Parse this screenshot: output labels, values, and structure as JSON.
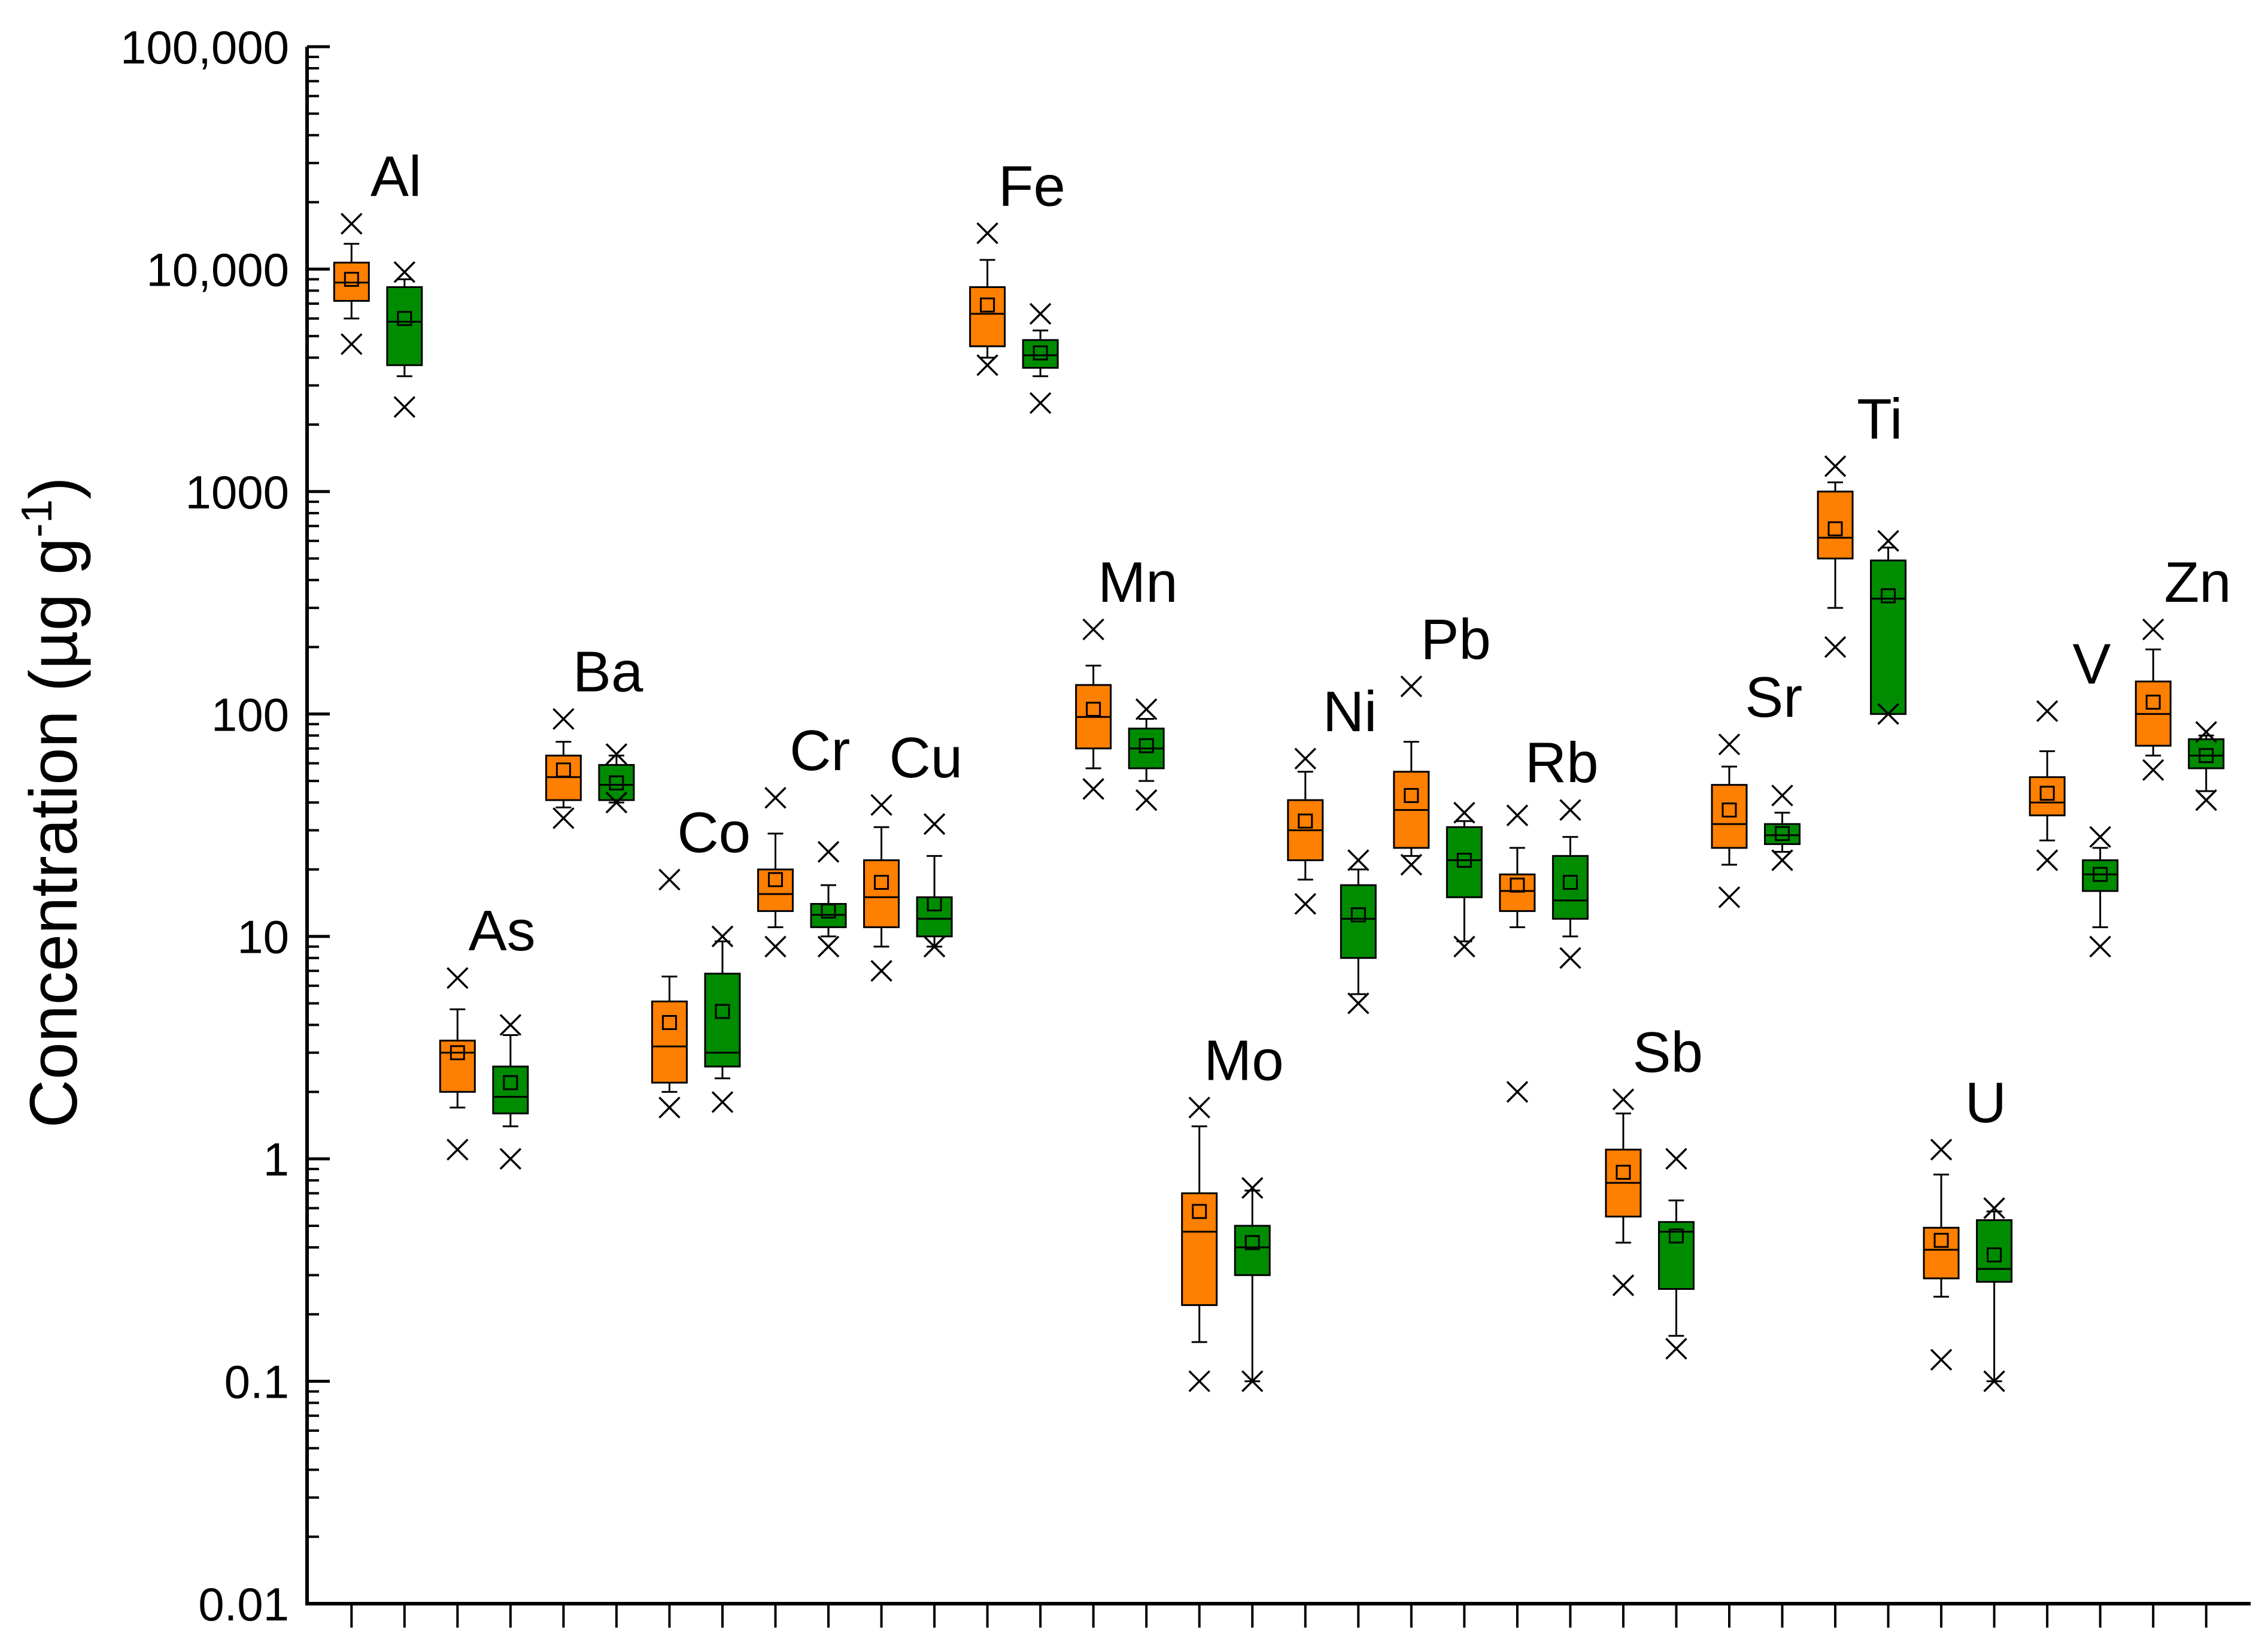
{
  "chart_data": {
    "type": "box",
    "y_scale": "log",
    "ylim": [
      0.01,
      100000
    ],
    "y_ticks": [
      "100,000",
      "10,000",
      "1000",
      "100",
      "10",
      "1",
      "0.1",
      "0.01"
    ],
    "ylabel": "Concentration (µg g",
    "ylabel_superscript": "-1",
    "ylabel_close": ")",
    "colors": {
      "series_a": "#FF7F00",
      "series_b": "#008C00",
      "stroke": "#000000"
    },
    "groups": [
      {
        "element": "Al",
        "boxes": [
          {
            "series": "a",
            "q1": 7200,
            "median": 8700,
            "q3": 10700,
            "whisker_low": 6000,
            "whisker_high": 13000,
            "mean": 9000,
            "min": 4600,
            "max": 16000
          },
          {
            "series": "b",
            "q1": 3700,
            "median": 5800,
            "q3": 8300,
            "whisker_low": 3300,
            "whisker_high": 9000,
            "mean": 6000,
            "min": 2400,
            "max": 9700
          }
        ]
      },
      {
        "element": "As",
        "boxes": [
          {
            "series": "a",
            "q1": 2.0,
            "median": 3.0,
            "q3": 3.4,
            "whisker_low": 1.7,
            "whisker_high": 4.7,
            "mean": 3.0,
            "min": 1.1,
            "max": 6.5
          },
          {
            "series": "b",
            "q1": 1.6,
            "median": 1.9,
            "q3": 2.6,
            "whisker_low": 1.4,
            "whisker_high": 3.6,
            "mean": 2.2,
            "min": 1.0,
            "max": 4.0
          }
        ]
      },
      {
        "element": "Ba",
        "boxes": [
          {
            "series": "a",
            "q1": 41,
            "median": 52,
            "q3": 65,
            "whisker_low": 38,
            "whisker_high": 75,
            "mean": 56,
            "min": 34,
            "max": 95
          },
          {
            "series": "b",
            "q1": 41,
            "median": 48,
            "q3": 59,
            "whisker_low": 40,
            "whisker_high": 65,
            "mean": 49,
            "min": 40,
            "max": 66
          }
        ]
      },
      {
        "element": "Co",
        "boxes": [
          {
            "series": "a",
            "q1": 2.2,
            "median": 3.2,
            "q3": 5.1,
            "whisker_low": 2.0,
            "whisker_high": 6.6,
            "mean": 4.1,
            "min": 1.7,
            "max": 18
          },
          {
            "series": "b",
            "q1": 2.6,
            "median": 3.0,
            "q3": 6.8,
            "whisker_low": 2.3,
            "whisker_high": 9.5,
            "mean": 4.6,
            "min": 1.8,
            "max": 10
          }
        ]
      },
      {
        "element": "Cr",
        "boxes": [
          {
            "series": "a",
            "q1": 13,
            "median": 15.5,
            "q3": 20,
            "whisker_low": 11,
            "whisker_high": 29,
            "mean": 18,
            "min": 9,
            "max": 42
          },
          {
            "series": "b",
            "q1": 11,
            "median": 12.5,
            "q3": 14,
            "whisker_low": 10,
            "whisker_high": 17,
            "mean": 13,
            "min": 9,
            "max": 24
          }
        ]
      },
      {
        "element": "Cu",
        "boxes": [
          {
            "series": "a",
            "q1": 11,
            "median": 15,
            "q3": 22,
            "whisker_low": 9,
            "whisker_high": 31,
            "mean": 17.5,
            "min": 7,
            "max": 39
          },
          {
            "series": "b",
            "q1": 10,
            "median": 12,
            "q3": 15,
            "whisker_low": 9,
            "whisker_high": 23,
            "mean": 14,
            "min": 9,
            "max": 32
          }
        ]
      },
      {
        "element": "Fe",
        "boxes": [
          {
            "series": "a",
            "q1": 4500,
            "median": 6300,
            "q3": 8300,
            "whisker_low": 4000,
            "whisker_high": 11000,
            "mean": 6900,
            "min": 3700,
            "max": 14500
          },
          {
            "series": "b",
            "q1": 3600,
            "median": 4100,
            "q3": 4800,
            "whisker_low": 3300,
            "whisker_high": 5300,
            "mean": 4200,
            "min": 2500,
            "max": 6300
          }
        ]
      },
      {
        "element": "Mn",
        "boxes": [
          {
            "series": "a",
            "q1": 70,
            "median": 97,
            "q3": 135,
            "whisker_low": 57,
            "whisker_high": 165,
            "mean": 105,
            "min": 46,
            "max": 240
          },
          {
            "series": "b",
            "q1": 57,
            "median": 70,
            "q3": 86,
            "whisker_low": 50,
            "whisker_high": 95,
            "mean": 72,
            "min": 41,
            "max": 105
          }
        ]
      },
      {
        "element": "Mo",
        "boxes": [
          {
            "series": "a",
            "q1": 0.22,
            "median": 0.47,
            "q3": 0.7,
            "whisker_low": 0.15,
            "whisker_high": 1.4,
            "mean": 0.58,
            "min": 0.1,
            "max": 1.7
          },
          {
            "series": "b",
            "q1": 0.3,
            "median": 0.4,
            "q3": 0.5,
            "whisker_low": 0.1,
            "whisker_high": 0.72,
            "mean": 0.42,
            "min": 0.1,
            "max": 0.74
          }
        ]
      },
      {
        "element": "Ni",
        "boxes": [
          {
            "series": "a",
            "q1": 22,
            "median": 30,
            "q3": 41,
            "whisker_low": 18,
            "whisker_high": 55,
            "mean": 33,
            "min": 14,
            "max": 63
          },
          {
            "series": "b",
            "q1": 8,
            "median": 12,
            "q3": 17,
            "whisker_low": 5.5,
            "whisker_high": 20,
            "mean": 12.5,
            "min": 5,
            "max": 22
          }
        ]
      },
      {
        "element": "Pb",
        "boxes": [
          {
            "series": "a",
            "q1": 25,
            "median": 37,
            "q3": 55,
            "whisker_low": 23,
            "whisker_high": 75,
            "mean": 43,
            "min": 21,
            "max": 133
          },
          {
            "series": "b",
            "q1": 15,
            "median": 22,
            "q3": 31,
            "whisker_low": 9.5,
            "whisker_high": 33,
            "mean": 22,
            "min": 9,
            "max": 36
          }
        ]
      },
      {
        "element": "Rb",
        "boxes": [
          {
            "series": "a",
            "q1": 13,
            "median": 16,
            "q3": 19,
            "whisker_low": 11,
            "whisker_high": 25,
            "mean": 17,
            "min": 2,
            "max": 35
          },
          {
            "series": "b",
            "q1": 12,
            "median": 14.5,
            "q3": 23,
            "whisker_low": 10,
            "whisker_high": 28,
            "mean": 17.5,
            "min": 8,
            "max": 37
          }
        ]
      },
      {
        "element": "Sb",
        "boxes": [
          {
            "series": "a",
            "q1": 0.55,
            "median": 0.78,
            "q3": 1.1,
            "whisker_low": 0.42,
            "whisker_high": 1.6,
            "mean": 0.87,
            "min": 0.27,
            "max": 1.85
          },
          {
            "series": "b",
            "q1": 0.26,
            "median": 0.47,
            "q3": 0.52,
            "whisker_low": 0.16,
            "whisker_high": 0.65,
            "mean": 0.45,
            "min": 0.14,
            "max": 1.0
          }
        ]
      },
      {
        "element": "Sr",
        "boxes": [
          {
            "series": "a",
            "q1": 25,
            "median": 32,
            "q3": 48,
            "whisker_low": 21,
            "whisker_high": 58,
            "mean": 37,
            "min": 15,
            "max": 73
          },
          {
            "series": "b",
            "q1": 26,
            "median": 28.5,
            "q3": 32,
            "whisker_low": 24,
            "whisker_high": 36,
            "mean": 29,
            "min": 22,
            "max": 43
          }
        ]
      },
      {
        "element": "Ti",
        "boxes": [
          {
            "series": "a",
            "q1": 500,
            "median": 620,
            "q3": 1000,
            "whisker_low": 300,
            "whisker_high": 1100,
            "mean": 680,
            "min": 200,
            "max": 1300
          },
          {
            "series": "b",
            "q1": 100,
            "median": 330,
            "q3": 490,
            "whisker_low": 100,
            "whisker_high": 560,
            "mean": 340,
            "min": 100,
            "max": 600
          }
        ]
      },
      {
        "element": "U",
        "boxes": [
          {
            "series": "a",
            "q1": 0.29,
            "median": 0.39,
            "q3": 0.49,
            "whisker_low": 0.24,
            "whisker_high": 0.85,
            "mean": 0.43,
            "min": 0.125,
            "max": 1.1
          },
          {
            "series": "b",
            "q1": 0.28,
            "median": 0.32,
            "q3": 0.53,
            "whisker_low": 0.1,
            "whisker_high": 0.58,
            "mean": 0.37,
            "min": 0.1,
            "max": 0.6
          }
        ]
      },
      {
        "element": "V",
        "boxes": [
          {
            "series": "a",
            "q1": 35,
            "median": 40,
            "q3": 52,
            "whisker_low": 27,
            "whisker_high": 68,
            "mean": 44,
            "min": 22,
            "max": 103
          },
          {
            "series": "b",
            "q1": 16,
            "median": 19,
            "q3": 22,
            "whisker_low": 11,
            "whisker_high": 25,
            "mean": 19,
            "min": 9,
            "max": 28
          }
        ]
      },
      {
        "element": "Zn",
        "boxes": [
          {
            "series": "a",
            "q1": 72,
            "median": 100,
            "q3": 140,
            "whisker_low": 65,
            "whisker_high": 195,
            "mean": 113,
            "min": 56,
            "max": 240
          },
          {
            "series": "b",
            "q1": 57,
            "median": 65,
            "q3": 77,
            "whisker_low": 45,
            "whisker_high": 80,
            "mean": 65,
            "min": 41,
            "max": 83
          }
        ]
      }
    ]
  }
}
